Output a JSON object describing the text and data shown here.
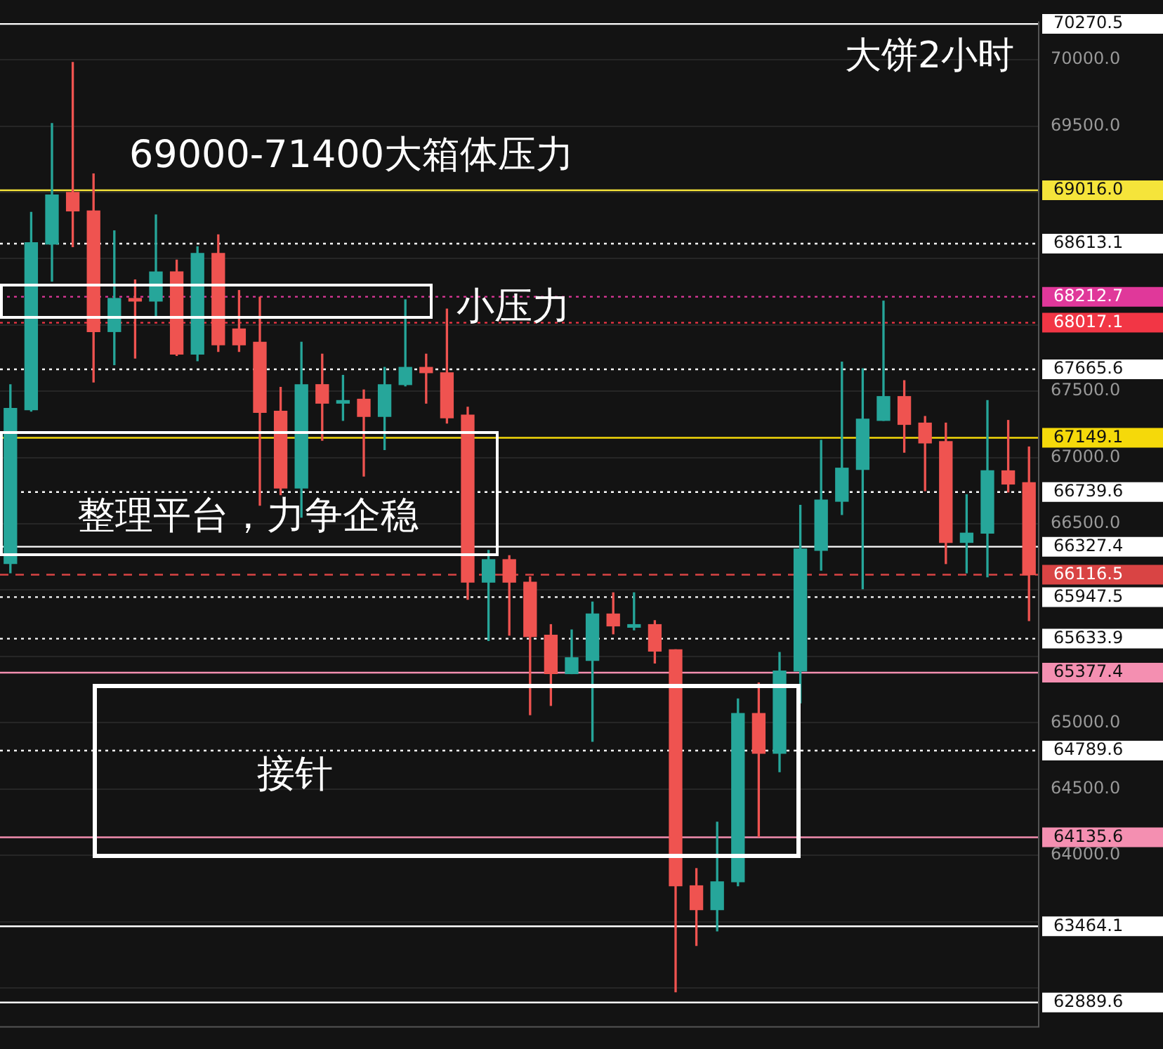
{
  "chart_data": {
    "type": "candlestick",
    "title": "大饼2小时",
    "categories": [
      null,
      null,
      null,
      null,
      null,
      null,
      null,
      null,
      null,
      null,
      null,
      null,
      null,
      null,
      null,
      null,
      null,
      null,
      null,
      null,
      null,
      null,
      null,
      null,
      null,
      null,
      null,
      null,
      null,
      null,
      null,
      null,
      null,
      null,
      null,
      null,
      null,
      null,
      null,
      null,
      null,
      null,
      null,
      null,
      null,
      null,
      null,
      null,
      null,
      null
    ],
    "ohlc": [
      [
        66200,
        67550,
        66130,
        67370
      ],
      [
        67360,
        68850,
        67350,
        68620
      ],
      [
        68610,
        69520,
        68330,
        68980
      ],
      [
        69000,
        69980,
        68590,
        68860
      ],
      [
        68860,
        69140,
        67570,
        67950
      ],
      [
        67950,
        68710,
        67700,
        68200
      ],
      [
        68200,
        68340,
        67750,
        68180
      ],
      [
        68180,
        68830,
        68070,
        68400
      ],
      [
        68400,
        68490,
        67770,
        67780
      ],
      [
        67780,
        68590,
        67730,
        68540
      ],
      [
        68540,
        68680,
        67800,
        67850
      ],
      [
        67970,
        68260,
        67800,
        67850
      ],
      [
        67870,
        68210,
        66640,
        67340
      ],
      [
        67350,
        67530,
        66720,
        66770
      ],
      [
        66770,
        67870,
        66550,
        67550
      ],
      [
        67550,
        67780,
        67130,
        67410
      ],
      [
        67410,
        67620,
        67280,
        67430
      ],
      [
        67440,
        67510,
        66860,
        67310
      ],
      [
        67310,
        67680,
        67060,
        67550
      ],
      [
        67550,
        68190,
        67540,
        67680
      ],
      [
        67680,
        67780,
        67410,
        67640
      ],
      [
        67640,
        68120,
        67260,
        67300
      ],
      [
        67320,
        67380,
        65930,
        66060
      ],
      [
        66060,
        66300,
        65620,
        66230
      ],
      [
        66230,
        66260,
        65660,
        66060
      ],
      [
        66060,
        66100,
        65060,
        65650
      ],
      [
        65660,
        65740,
        65130,
        65370
      ],
      [
        65370,
        65700,
        65370,
        65490
      ],
      [
        65470,
        65910,
        64860,
        65820
      ],
      [
        65820,
        65980,
        65670,
        65730
      ],
      [
        65720,
        65980,
        65700,
        65740
      ],
      [
        65740,
        65770,
        65450,
        65540
      ],
      [
        65550,
        65550,
        62970,
        63770
      ],
      [
        63770,
        63900,
        63320,
        63590
      ],
      [
        63590,
        64250,
        63430,
        63800
      ],
      [
        63800,
        65180,
        63770,
        65070
      ],
      [
        65070,
        65300,
        64140,
        64770
      ],
      [
        64770,
        65530,
        64630,
        65390
      ],
      [
        65390,
        66640,
        65150,
        66310
      ],
      [
        66300,
        67130,
        66150,
        66680
      ],
      [
        66670,
        67720,
        66570,
        66920
      ],
      [
        66910,
        67670,
        66010,
        67290
      ],
      [
        67280,
        68180,
        67280,
        67460
      ],
      [
        67460,
        67580,
        67040,
        67250
      ],
      [
        67260,
        67310,
        66750,
        67110
      ],
      [
        67120,
        67260,
        66200,
        66360
      ],
      [
        66360,
        66720,
        66130,
        66430
      ],
      [
        66430,
        67430,
        66100,
        66900
      ],
      [
        66900,
        67280,
        66740,
        66800
      ],
      [
        66810,
        67080,
        65770,
        66116.5
      ]
    ],
    "colors": [
      "#26a69a",
      "#26a69a",
      "#26a69a",
      "#ef5350",
      "#ef5350",
      "#26a69a",
      "#ef5350",
      "#26a69a",
      "#ef5350",
      "#26a69a",
      "#ef5350",
      "#ef5350",
      "#ef5350",
      "#ef5350",
      "#26a69a",
      "#ef5350",
      "#26a69a",
      "#ef5350",
      "#26a69a",
      "#26a69a",
      "#ef5350",
      "#ef5350",
      "#ef5350",
      "#26a69a",
      "#ef5350",
      "#ef5350",
      "#ef5350",
      "#26a69a",
      "#26a69a",
      "#ef5350",
      "#26a69a",
      "#ef5350",
      "#ef5350",
      "#ef5350",
      "#26a69a",
      "#26a69a",
      "#ef5350",
      "#26a69a",
      "#26a69a",
      "#26a69a",
      "#26a69a",
      "#26a69a",
      "#26a69a",
      "#ef5350",
      "#ef5350",
      "#ef5350",
      "#26a69a",
      "#26a69a",
      "#ef5350",
      "#ef5350"
    ],
    "ylim": [
      62700,
      70290
    ],
    "yticks": [
      {
        "value": 63000,
        "label": null
      },
      {
        "value": 63500,
        "label": null
      },
      {
        "value": 64000,
        "label": "64000.0"
      },
      {
        "value": 64500,
        "label": "64500.0"
      },
      {
        "value": 65000,
        "label": "65000.0"
      },
      {
        "value": 65500,
        "label": null
      },
      {
        "value": 66000,
        "label": null
      },
      {
        "value": 66500,
        "label": "66500.0"
      },
      {
        "value": 67000,
        "label": "67000.0"
      },
      {
        "value": 67500,
        "label": "67500.0"
      },
      {
        "value": 68000,
        "label": null
      },
      {
        "value": 68500,
        "label": null
      },
      {
        "value": 69000,
        "label": null
      },
      {
        "value": 69500,
        "label": "69500.0"
      },
      {
        "value": 70000,
        "label": "70000.0"
      }
    ],
    "ref_lines": [
      {
        "axis": "y",
        "value": 70270.5,
        "label": "70270.5",
        "color": "#ffffff",
        "line_style": "solid"
      },
      {
        "axis": "y",
        "value": 69016.0,
        "label": "69016.0",
        "color": "#f5e43a",
        "line_style": "solid"
      },
      {
        "axis": "y",
        "value": 68613.1,
        "label": "68613.1",
        "color": "#ffffff",
        "line_style": "dotted"
      },
      {
        "axis": "y",
        "value": 68212.7,
        "label": "68212.7",
        "color": "#e0389a",
        "line_style": "dotted"
      },
      {
        "axis": "y",
        "value": 68017.1,
        "label": "68017.1",
        "color": "#f23645",
        "line_style": "dotted"
      },
      {
        "axis": "y",
        "value": 67665.6,
        "label": "67665.6",
        "color": "#ffffff",
        "line_style": "dotted"
      },
      {
        "axis": "y",
        "value": 67149.1,
        "label": "67149.1",
        "color": "#f5d90a",
        "line_style": "solid"
      },
      {
        "axis": "y",
        "value": 66739.6,
        "label": "66739.6",
        "color": "#ffffff",
        "line_style": "dotted"
      },
      {
        "axis": "y",
        "value": 66327.4,
        "label": "66327.4",
        "color": "#ffffff",
        "line_style": "solid"
      },
      {
        "axis": "y",
        "value": 66116.5,
        "label": "66116.5",
        "color": "#d94444",
        "line_style": "dashed"
      },
      {
        "axis": "y",
        "value": 65947.5,
        "label": "65947.5",
        "color": "#ffffff",
        "line_style": "dotted"
      },
      {
        "axis": "y",
        "value": 65633.9,
        "label": "65633.9",
        "color": "#ffffff",
        "line_style": "dotted"
      },
      {
        "axis": "y",
        "value": 65377.4,
        "label": "65377.4",
        "color": "#f48fb1",
        "line_style": "solid"
      },
      {
        "axis": "y",
        "value": 64789.6,
        "label": "64789.6",
        "color": "#ffffff",
        "line_style": "dotted"
      },
      {
        "axis": "y",
        "value": 64135.6,
        "label": "64135.6",
        "color": "#f48fb1",
        "line_style": "solid"
      },
      {
        "axis": "y",
        "value": 63464.1,
        "label": "63464.1",
        "color": "#ffffff",
        "line_style": "solid"
      },
      {
        "axis": "y",
        "value": 62889.6,
        "label": "62889.6",
        "color": "#ffffff",
        "line_style": "solid"
      }
    ],
    "annotations": [
      "69000-71400大箱体压力",
      "小压力",
      "整理平台，力争企稳",
      "接针"
    ],
    "grid": "y",
    "tick_labels": "y",
    "legend": false
  }
}
